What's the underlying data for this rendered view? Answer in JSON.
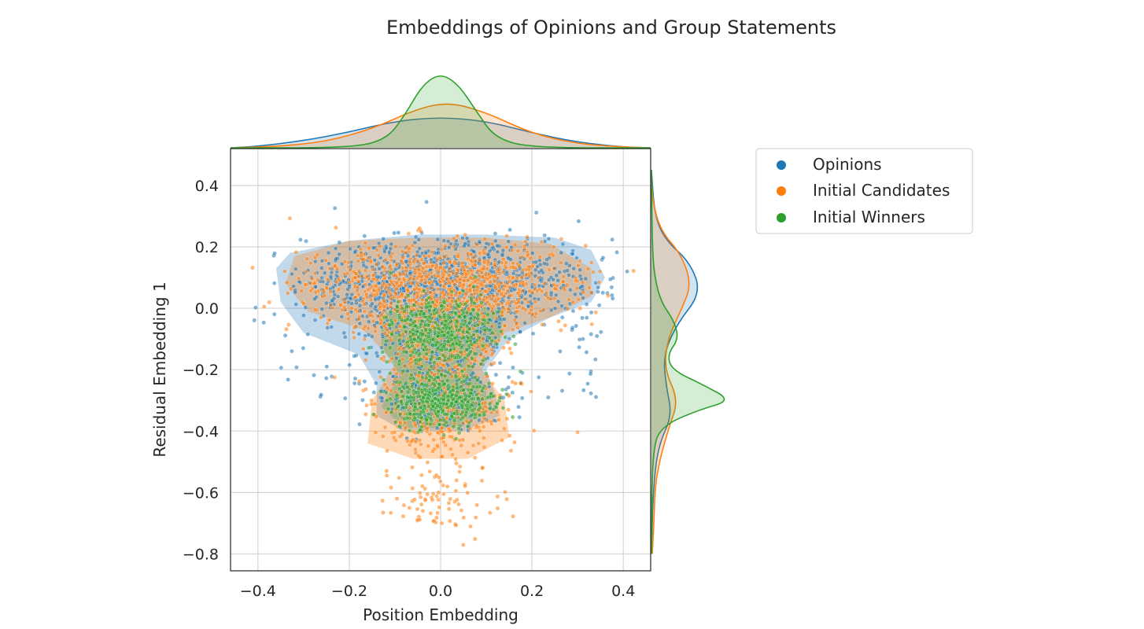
{
  "chart_data": {
    "type": "scatter",
    "title": "Embeddings of Opinions and Group Statements",
    "xlabel": "Position Embedding",
    "ylabel": "Residual Embedding 1",
    "xlim": [
      -0.46,
      0.46
    ],
    "ylim": [
      -0.855,
      0.52
    ],
    "xticks": [
      -0.4,
      -0.2,
      0.0,
      0.2,
      0.4
    ],
    "yticks": [
      0.4,
      0.2,
      0.0,
      -0.2,
      -0.4,
      -0.6,
      -0.8
    ],
    "xtick_labels": [
      "−0.4",
      "−0.2",
      "0.0",
      "0.2",
      "0.4"
    ],
    "ytick_labels": [
      "0.4",
      "0.2",
      "0.0",
      "−0.2",
      "−0.4",
      "−0.6",
      "−0.8"
    ],
    "grid": true,
    "legend_position": "right",
    "legend_title": "",
    "series": [
      {
        "name": "Opinions",
        "color": "#1f77b4",
        "point_count": 1600,
        "marginal_x_peak": [
          0.03,
          0.5
        ],
        "marginal_y_peak": [
          0.07,
          0.62
        ],
        "kde_x": [
          [
            -0.46,
            0.0
          ],
          [
            -0.4,
            0.02
          ],
          [
            -0.3,
            0.09
          ],
          [
            -0.2,
            0.2
          ],
          [
            -0.1,
            0.34
          ],
          [
            0.0,
            0.39
          ],
          [
            0.1,
            0.34
          ],
          [
            0.2,
            0.19
          ],
          [
            0.3,
            0.07
          ],
          [
            0.4,
            0.01
          ],
          [
            0.46,
            0.0
          ]
        ],
        "kde_y": [
          [
            -0.8,
            0.0
          ],
          [
            -0.6,
            0.02
          ],
          [
            -0.45,
            0.08
          ],
          [
            -0.35,
            0.26
          ],
          [
            -0.25,
            0.18
          ],
          [
            -0.15,
            0.15
          ],
          [
            -0.05,
            0.32
          ],
          [
            0.05,
            0.62
          ],
          [
            0.15,
            0.48
          ],
          [
            0.22,
            0.18
          ],
          [
            0.3,
            0.04
          ],
          [
            0.45,
            0.0
          ]
        ]
      },
      {
        "name": "Initial Candidates",
        "color": "#ff7f0e",
        "point_count": 1700,
        "marginal_x_peak": [
          0.02,
          0.58
        ],
        "marginal_y_peak": [
          0.08,
          0.5
        ],
        "kde_x": [
          [
            -0.46,
            0.0
          ],
          [
            -0.35,
            0.02
          ],
          [
            -0.25,
            0.08
          ],
          [
            -0.15,
            0.24
          ],
          [
            -0.05,
            0.5
          ],
          [
            0.02,
            0.58
          ],
          [
            0.1,
            0.45
          ],
          [
            0.2,
            0.18
          ],
          [
            0.3,
            0.05
          ],
          [
            0.4,
            0.01
          ],
          [
            0.46,
            0.0
          ]
        ],
        "kde_y": [
          [
            -0.8,
            0.01
          ],
          [
            -0.7,
            0.03
          ],
          [
            -0.55,
            0.05
          ],
          [
            -0.4,
            0.2
          ],
          [
            -0.3,
            0.34
          ],
          [
            -0.2,
            0.16
          ],
          [
            -0.1,
            0.2
          ],
          [
            0.0,
            0.38
          ],
          [
            0.08,
            0.5
          ],
          [
            0.18,
            0.36
          ],
          [
            0.25,
            0.12
          ],
          [
            0.35,
            0.01
          ],
          [
            0.45,
            0.0
          ]
        ]
      },
      {
        "name": "Initial Winners",
        "color": "#2ca02c",
        "point_count": 900,
        "marginal_x_peak": [
          0.0,
          0.95
        ],
        "marginal_y_peak": [
          -0.3,
          1.0
        ],
        "kde_x": [
          [
            -0.46,
            0.0
          ],
          [
            -0.2,
            0.0
          ],
          [
            -0.12,
            0.1
          ],
          [
            -0.08,
            0.4
          ],
          [
            -0.04,
            0.8
          ],
          [
            0.0,
            0.95
          ],
          [
            0.04,
            0.8
          ],
          [
            0.08,
            0.45
          ],
          [
            0.12,
            0.12
          ],
          [
            0.2,
            0.0
          ],
          [
            0.46,
            0.0
          ]
        ],
        "kde_y": [
          [
            -0.8,
            0.0
          ],
          [
            -0.45,
            0.01
          ],
          [
            -0.38,
            0.15
          ],
          [
            -0.33,
            0.6
          ],
          [
            -0.3,
            1.0
          ],
          [
            -0.25,
            0.65
          ],
          [
            -0.2,
            0.25
          ],
          [
            -0.15,
            0.2
          ],
          [
            -0.1,
            0.34
          ],
          [
            -0.04,
            0.28
          ],
          [
            0.02,
            0.12
          ],
          [
            0.1,
            0.04
          ],
          [
            0.2,
            0.01
          ],
          [
            0.45,
            0.0
          ]
        ]
      }
    ]
  }
}
